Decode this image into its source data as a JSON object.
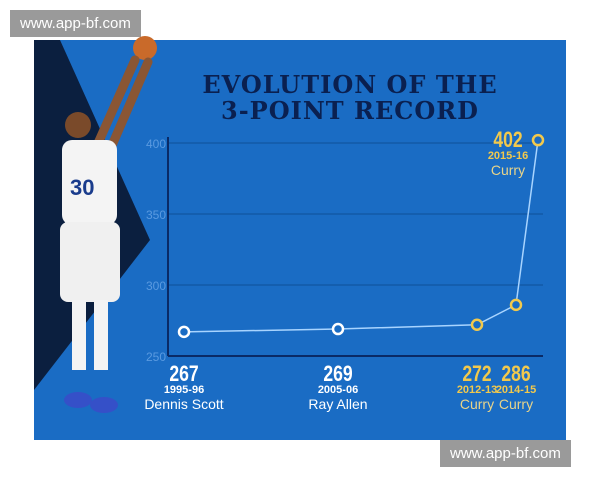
{
  "watermarks": [
    "www.app-bf.com",
    "www.app-bf.com"
  ],
  "chart_data": {
    "type": "line",
    "title": "EVOLUTION OF THE 3-POINT RECORD",
    "title_lines": [
      "EVOLUTION OF THE",
      "3-POINT RECORD"
    ],
    "x": [
      "1995-96",
      "2005-06",
      "2012-13",
      "2014-15",
      "2015-16"
    ],
    "values": [
      267,
      269,
      272,
      286,
      402
    ],
    "players": [
      "Dennis Scott",
      "Ray Allen",
      "Curry",
      "Curry",
      "Curry"
    ],
    "highlight": [
      false,
      false,
      true,
      true,
      true
    ],
    "yticks": [
      250,
      300,
      350,
      400
    ],
    "ylim": [
      250,
      400
    ],
    "grid": true,
    "colors": {
      "background": "#1a6cc4",
      "line": "#a8d4ff",
      "white": "#ffffff",
      "gold": "#f2c94c",
      "grid": "#0d4f99",
      "axis": "#0a2a66"
    }
  }
}
